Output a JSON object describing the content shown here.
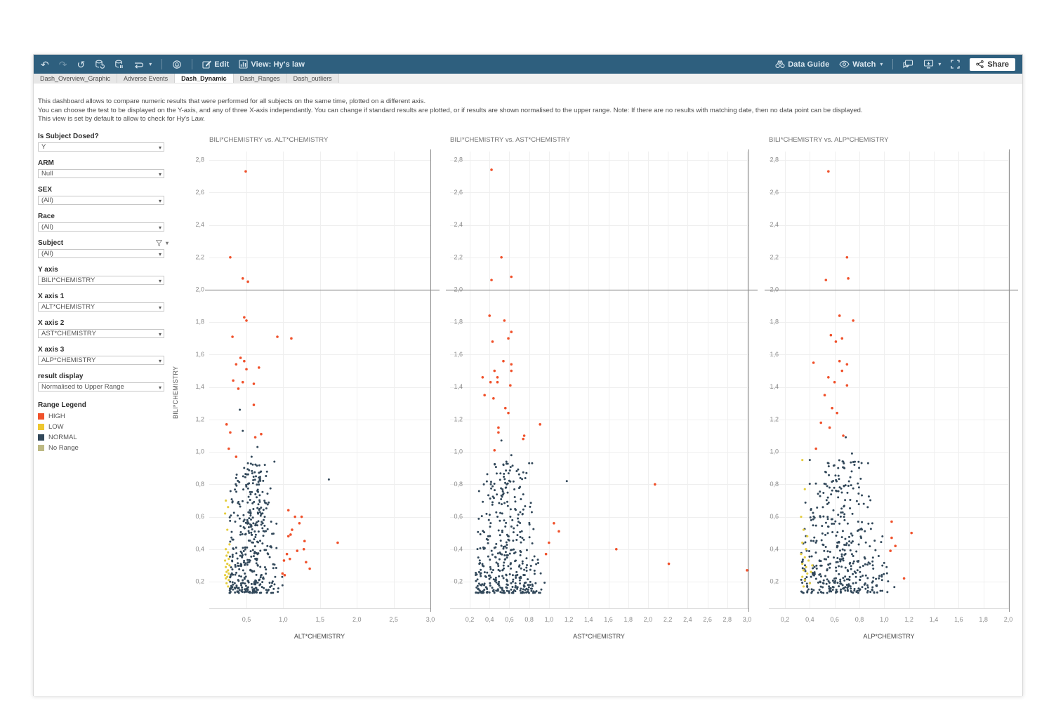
{
  "toolbar": {
    "edit_label": "Edit",
    "view_label": "View: Hy's law",
    "data_guide_label": "Data Guide",
    "watch_label": "Watch",
    "share_label": "Share"
  },
  "tabs": [
    {
      "label": "Dash_Overview_Graphic",
      "active": false
    },
    {
      "label": "Adverse Events",
      "active": false
    },
    {
      "label": "Dash_Dynamic",
      "active": true
    },
    {
      "label": "Dash_Ranges",
      "active": false
    },
    {
      "label": "Dash_outliers",
      "active": false
    }
  ],
  "description": {
    "line1": "This dashboard allows to compare numeric results that were performed for all subjects on the same time, plotted on a different axis.",
    "line2": "You can choose the test to be displayed on the Y-axis, and any of three X-axis independantly. You can change if standard results are plotted, or if results are shown normalised to the upper range. Note: If there are no results with matching date, then no data point can be displayed.",
    "line3": "This view is set by default to allow to check for Hy's Law."
  },
  "filters": [
    {
      "label": "Is Subject Dosed?",
      "value": "Y",
      "funnel": false
    },
    {
      "label": "ARM",
      "value": "Null",
      "funnel": false
    },
    {
      "label": "SEX",
      "value": "(All)",
      "funnel": false
    },
    {
      "label": "Race",
      "value": "(All)",
      "funnel": false
    },
    {
      "label": "Subject",
      "value": "(All)",
      "funnel": true
    },
    {
      "label": "Y axis",
      "value": "BILI*CHEMISTRY",
      "funnel": false
    },
    {
      "label": "X axis 1",
      "value": "ALT*CHEMISTRY",
      "funnel": false
    },
    {
      "label": "X axis 2",
      "value": "AST*CHEMISTRY",
      "funnel": false
    },
    {
      "label": "X axis 3",
      "value": "ALP*CHEMISTRY",
      "funnel": false
    },
    {
      "label": "result display",
      "value": "Normalised to Upper Range",
      "funnel": false
    }
  ],
  "legend": {
    "title": "Range Legend",
    "items": [
      {
        "label": "HIGH",
        "color": "#f0522b"
      },
      {
        "label": "LOW",
        "color": "#eec72f"
      },
      {
        "label": "NORMAL",
        "color": "#32485a"
      },
      {
        "label": "No Range",
        "color": "#bdb983"
      }
    ]
  },
  "yaxis_title": "BILI*CHEMISTRY",
  "chart_data": [
    {
      "type": "scatter",
      "title": "BILI*CHEMISTRY vs. ALT*CHEMISTRY",
      "xlabel": "ALT*CHEMISTRY",
      "ylabel": "BILI*CHEMISTRY",
      "xlim": [
        0,
        3.0
      ],
      "ylim": [
        0.05,
        2.85
      ],
      "x_ticks": [
        0.5,
        1.0,
        1.5,
        2.0,
        2.5,
        3.0
      ],
      "y_ticks": [
        0.2,
        0.4,
        0.6,
        0.8,
        1.0,
        1.2,
        1.4,
        1.6,
        1.8,
        2.0,
        2.2,
        2.4,
        2.6,
        2.8
      ],
      "ref_line_y": 2.0,
      "high": [
        [
          0.49,
          2.73
        ],
        [
          0.28,
          2.2
        ],
        [
          0.45,
          2.07
        ],
        [
          0.52,
          2.05
        ],
        [
          0.47,
          1.83
        ],
        [
          0.5,
          1.81
        ],
        [
          0.31,
          1.71
        ],
        [
          0.92,
          1.71
        ],
        [
          1.11,
          1.7
        ],
        [
          0.42,
          1.58
        ],
        [
          0.47,
          1.56
        ],
        [
          0.36,
          1.54
        ],
        [
          0.5,
          1.51
        ],
        [
          0.67,
          1.52
        ],
        [
          0.32,
          1.44
        ],
        [
          0.45,
          1.43
        ],
        [
          0.6,
          1.42
        ],
        [
          0.39,
          1.39
        ],
        [
          0.6,
          1.29
        ],
        [
          0.23,
          1.17
        ],
        [
          0.28,
          1.12
        ],
        [
          0.7,
          1.11
        ],
        [
          0.62,
          1.09
        ],
        [
          0.26,
          1.02
        ],
        [
          0.36,
          0.97
        ],
        [
          1.07,
          0.64
        ],
        [
          1.16,
          0.6
        ],
        [
          1.25,
          0.6
        ],
        [
          1.22,
          0.56
        ],
        [
          1.12,
          0.52
        ],
        [
          1.1,
          0.49
        ],
        [
          1.07,
          0.48
        ],
        [
          1.29,
          0.45
        ],
        [
          1.74,
          0.44
        ],
        [
          1.28,
          0.4
        ],
        [
          1.19,
          0.39
        ],
        [
          1.05,
          0.37
        ],
        [
          1.01,
          0.33
        ],
        [
          1.09,
          0.34
        ],
        [
          1.31,
          0.32
        ],
        [
          1.36,
          0.28
        ],
        [
          0.99,
          0.25
        ],
        [
          1.02,
          0.24
        ]
      ],
      "low": [
        [
          0.22,
          0.7
        ],
        [
          0.25,
          0.66
        ],
        [
          0.21,
          0.62
        ],
        [
          0.24,
          0.52
        ],
        [
          0.27,
          0.43
        ],
        [
          0.22,
          0.4
        ],
        [
          0.25,
          0.38
        ],
        [
          0.23,
          0.36
        ],
        [
          0.26,
          0.34
        ],
        [
          0.21,
          0.33
        ],
        [
          0.24,
          0.31
        ],
        [
          0.27,
          0.3
        ],
        [
          0.22,
          0.29
        ],
        [
          0.25,
          0.27
        ],
        [
          0.23,
          0.26
        ],
        [
          0.26,
          0.25
        ],
        [
          0.21,
          0.24
        ],
        [
          0.24,
          0.23
        ],
        [
          0.22,
          0.22
        ],
        [
          0.26,
          0.21
        ],
        [
          0.23,
          0.19
        ],
        [
          0.25,
          0.17
        ]
      ],
      "normal_extra": [
        [
          0.41,
          1.26
        ],
        [
          0.45,
          1.13
        ],
        [
          0.65,
          1.03
        ],
        [
          0.88,
          0.94
        ],
        [
          1.62,
          0.83
        ],
        [
          0.57,
          0.97
        ],
        [
          0.52,
          0.93
        ],
        [
          0.75,
          0.92
        ]
      ],
      "cluster": {
        "count": 400,
        "cx": 0.56,
        "spread": 0.52,
        "taper": 0.55,
        "xmin": 0.27,
        "xmax": 1.38,
        "ymin": 0.13,
        "yspan": 0.8,
        "skew": 1.9,
        "seed": 7
      }
    },
    {
      "type": "scatter",
      "title": "BILI*CHEMISTRY vs. AST*CHEMISTRY",
      "xlabel": "AST*CHEMISTRY",
      "ylabel": "BILI*CHEMISTRY",
      "xlim": [
        0.1,
        3.0
      ],
      "ylim": [
        0.05,
        2.85
      ],
      "x_ticks": [
        0.2,
        0.4,
        0.6,
        0.8,
        1.0,
        1.2,
        1.4,
        1.6,
        1.8,
        2.0,
        2.2,
        2.4,
        2.6,
        2.8,
        3.0
      ],
      "y_ticks": [
        0.2,
        0.4,
        0.6,
        0.8,
        1.0,
        1.2,
        1.4,
        1.6,
        1.8,
        2.0,
        2.2,
        2.4,
        2.6,
        2.8
      ],
      "ref_line_y": 2.0,
      "high": [
        [
          0.42,
          2.74
        ],
        [
          0.52,
          2.2
        ],
        [
          0.42,
          2.06
        ],
        [
          0.62,
          2.08
        ],
        [
          0.4,
          1.84
        ],
        [
          0.55,
          1.81
        ],
        [
          0.62,
          1.74
        ],
        [
          0.59,
          1.7
        ],
        [
          0.43,
          1.68
        ],
        [
          0.54,
          1.56
        ],
        [
          0.62,
          1.54
        ],
        [
          0.62,
          1.5
        ],
        [
          0.45,
          1.5
        ],
        [
          0.33,
          1.46
        ],
        [
          0.48,
          1.46
        ],
        [
          0.41,
          1.43
        ],
        [
          0.48,
          1.43
        ],
        [
          0.61,
          1.41
        ],
        [
          0.35,
          1.35
        ],
        [
          0.44,
          1.33
        ],
        [
          0.56,
          1.27
        ],
        [
          0.59,
          1.24
        ],
        [
          0.91,
          1.17
        ],
        [
          0.49,
          1.15
        ],
        [
          0.49,
          1.12
        ],
        [
          0.75,
          1.1
        ],
        [
          0.74,
          1.08
        ],
        [
          0.45,
          1.01
        ],
        [
          2.07,
          0.8
        ],
        [
          1.68,
          0.4
        ],
        [
          2.21,
          0.31
        ],
        [
          3.0,
          0.27
        ],
        [
          1.05,
          0.56
        ],
        [
          1.1,
          0.51
        ],
        [
          1.0,
          0.44
        ],
        [
          0.97,
          0.37
        ]
      ],
      "low": [],
      "normal_extra": [
        [
          0.52,
          1.07
        ],
        [
          0.62,
          0.98
        ],
        [
          0.8,
          0.93
        ],
        [
          0.83,
          0.93
        ],
        [
          1.18,
          0.82
        ],
        [
          0.57,
          0.94
        ]
      ],
      "cluster": {
        "count": 400,
        "cx": 0.56,
        "spread": 0.46,
        "taper": 0.5,
        "xmin": 0.26,
        "xmax": 1.22,
        "ymin": 0.13,
        "yspan": 0.8,
        "skew": 1.9,
        "seed": 13
      }
    },
    {
      "type": "scatter",
      "title": "BILI*CHEMISTRY vs. ALP*CHEMISTRY",
      "xlabel": "ALP*CHEMISTRY",
      "ylabel": "BILI*CHEMISTRY",
      "xlim": [
        0.1,
        2.0
      ],
      "ylim": [
        0.05,
        2.85
      ],
      "x_ticks": [
        0.2,
        0.4,
        0.6,
        0.8,
        1.0,
        1.2,
        1.4,
        1.6,
        1.8,
        2.0
      ],
      "y_ticks": [
        0.2,
        0.4,
        0.6,
        0.8,
        1.0,
        1.2,
        1.4,
        1.6,
        1.8,
        2.0,
        2.2,
        2.4,
        2.6,
        2.8
      ],
      "ref_line_y": 2.0,
      "high": [
        [
          0.55,
          2.73
        ],
        [
          0.7,
          2.2
        ],
        [
          0.53,
          2.06
        ],
        [
          0.71,
          2.07
        ],
        [
          0.64,
          1.84
        ],
        [
          0.75,
          1.81
        ],
        [
          0.57,
          1.72
        ],
        [
          0.66,
          1.7
        ],
        [
          0.61,
          1.68
        ],
        [
          0.43,
          1.55
        ],
        [
          0.64,
          1.56
        ],
        [
          0.7,
          1.54
        ],
        [
          0.66,
          1.5
        ],
        [
          0.55,
          1.46
        ],
        [
          0.6,
          1.43
        ],
        [
          0.7,
          1.41
        ],
        [
          0.52,
          1.35
        ],
        [
          0.58,
          1.27
        ],
        [
          0.62,
          1.24
        ],
        [
          0.49,
          1.18
        ],
        [
          0.56,
          1.15
        ],
        [
          0.67,
          1.1
        ],
        [
          0.45,
          1.02
        ],
        [
          1.06,
          0.57
        ],
        [
          1.06,
          0.47
        ],
        [
          1.09,
          0.42
        ],
        [
          1.05,
          0.39
        ],
        [
          1.16,
          0.22
        ],
        [
          1.22,
          0.5
        ]
      ],
      "low": [
        [
          0.34,
          0.95
        ],
        [
          0.36,
          0.77
        ],
        [
          0.33,
          0.6
        ],
        [
          0.35,
          0.52
        ],
        [
          0.38,
          0.48
        ],
        [
          0.34,
          0.44
        ],
        [
          0.37,
          0.4
        ],
        [
          0.33,
          0.37
        ],
        [
          0.36,
          0.35
        ],
        [
          0.39,
          0.33
        ],
        [
          0.34,
          0.31
        ],
        [
          0.37,
          0.29
        ],
        [
          0.35,
          0.27
        ],
        [
          0.38,
          0.25
        ],
        [
          0.34,
          0.23
        ],
        [
          0.36,
          0.21
        ],
        [
          0.4,
          0.19
        ],
        [
          0.35,
          0.17
        ],
        [
          0.42,
          0.3
        ],
        [
          0.41,
          0.26
        ]
      ],
      "normal_extra": [
        [
          0.69,
          1.09
        ],
        [
          0.74,
          0.99
        ],
        [
          0.4,
          0.95
        ],
        [
          0.87,
          0.93
        ]
      ],
      "cluster": {
        "count": 430,
        "cx": 0.64,
        "spread": 0.5,
        "taper": 0.5,
        "xmin": 0.33,
        "xmax": 1.28,
        "ymin": 0.13,
        "yspan": 0.82,
        "skew": 1.9,
        "seed": 29
      }
    }
  ],
  "colors": {
    "toolbar_bg": "#2e5f7e",
    "high": "#f0512b",
    "low": "#e5cd3e",
    "normal": "#32485a",
    "no_range": "#bdb983",
    "grid": "#efefef",
    "ref_line": "#9a9a9a",
    "panel_border": "#8c8c8c",
    "tick_text": "#8a8a8a"
  }
}
